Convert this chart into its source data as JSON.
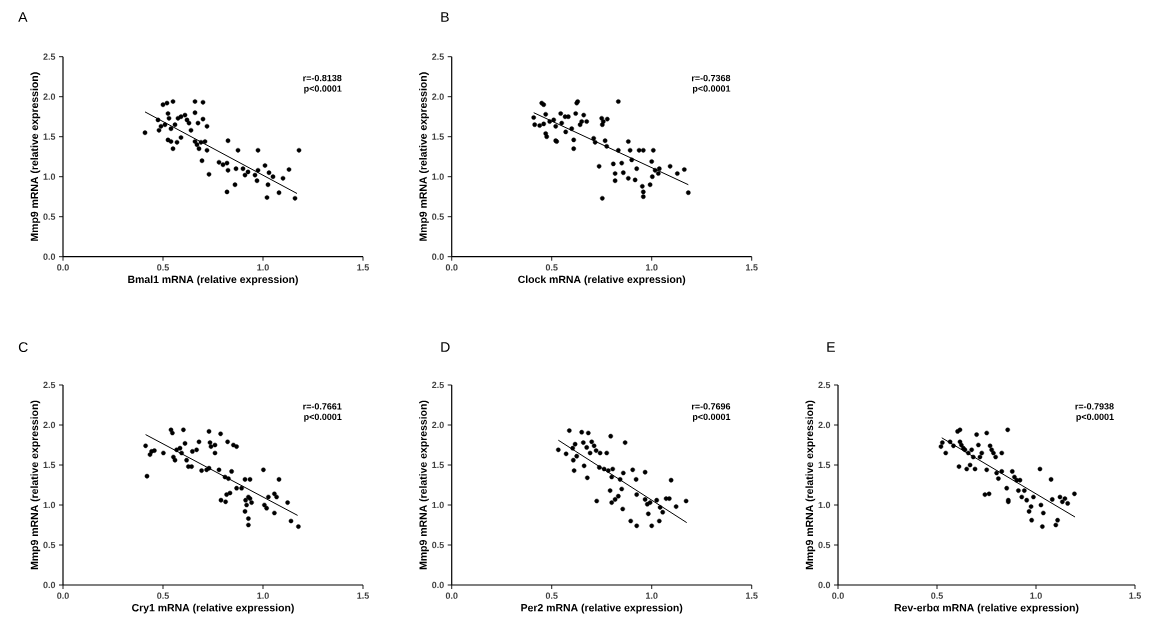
{
  "chart_data": [
    {
      "type": "scatter",
      "title": "A",
      "xlabel": "Bmal1 mRNA (relative expression)",
      "ylabel": "Mmp9 mRNA (relative expression)",
      "xlim": [
        0,
        1.5
      ],
      "ylim": [
        0,
        2.5
      ],
      "xticks": [
        {
          "value": 0,
          "label": "0.0"
        },
        {
          "value": 0.5,
          "label": "0.5"
        },
        {
          "value": 1,
          "label": "1.0"
        },
        {
          "value": 1.5,
          "label": "1.5"
        }
      ],
      "yticks": [
        {
          "value": 0,
          "label": "0.0"
        },
        {
          "value": 0.5,
          "label": "0.5"
        },
        {
          "value": 1,
          "label": "1.0"
        },
        {
          "value": 1.5,
          "label": "1.5"
        },
        {
          "value": 2,
          "label": "2.0"
        },
        {
          "value": 2.5,
          "label": "2.5"
        }
      ],
      "marker": "circle",
      "annotations": [
        "r=-0.8138",
        "p<0.0001"
      ],
      "series": [
        {
          "type": "scatter",
          "color": "#000000",
          "x": [
            0.41,
            0.5,
            0.52,
            0.55,
            0.66,
            0.7,
            0.66,
            0.7,
            0.72,
            0.475,
            0.49,
            0.48,
            0.51,
            0.525,
            0.53,
            0.54,
            0.56,
            0.575,
            0.59,
            0.61,
            0.62,
            0.63,
            0.64,
            0.675,
            0.525,
            0.54,
            0.55,
            0.57,
            0.59,
            0.66,
            0.67,
            0.68,
            0.69,
            0.71,
            0.72,
            0.695,
            0.73,
            0.825,
            0.875,
            0.975,
            1.18,
            0.78,
            0.8,
            0.82,
            0.825,
            0.865,
            0.9,
            0.91,
            0.925,
            0.96,
            0.975,
            1.01,
            1.03,
            1.025,
            0.97,
            1.05,
            1.1,
            1.13,
            0.86,
            0.82,
            1.02,
            1.08,
            1.16
          ],
          "values": [
            1.55,
            1.9,
            1.92,
            1.94,
            1.94,
            1.93,
            1.8,
            1.72,
            1.63,
            1.71,
            1.63,
            1.58,
            1.65,
            1.79,
            1.73,
            1.6,
            1.65,
            1.73,
            1.75,
            1.77,
            1.71,
            1.67,
            1.58,
            1.67,
            1.46,
            1.44,
            1.35,
            1.43,
            1.49,
            1.44,
            1.4,
            1.35,
            1.43,
            1.44,
            1.33,
            1.2,
            1.03,
            1.45,
            1.33,
            1.33,
            1.33,
            1.18,
            1.15,
            1.17,
            1.08,
            1.1,
            1.1,
            1.02,
            1.06,
            1.02,
            1.08,
            1.14,
            1.05,
            0.9,
            0.95,
            1.0,
            0.98,
            1.09,
            0.9,
            0.81,
            0.74,
            0.8,
            0.73
          ]
        },
        {
          "type": "line",
          "marker": "none",
          "color": "#000000",
          "x": [
            0.41,
            1.17
          ],
          "values": [
            1.81,
            0.79
          ]
        }
      ]
    },
    {
      "type": "scatter",
      "title": "B",
      "xlabel": "Clock mRNA (relative expression)",
      "ylabel": "Mmp9 mRNA (relative expression)",
      "xlim": [
        0,
        1.5
      ],
      "ylim": [
        0,
        2.5
      ],
      "xticks": [
        {
          "value": 0,
          "label": "0.0"
        },
        {
          "value": 0.5,
          "label": "0.5"
        },
        {
          "value": 1,
          "label": "1.0"
        },
        {
          "value": 1.5,
          "label": "1.5"
        }
      ],
      "yticks": [
        {
          "value": 0,
          "label": "0.0"
        },
        {
          "value": 0.5,
          "label": "0.5"
        },
        {
          "value": 1,
          "label": "1.0"
        },
        {
          "value": 1.5,
          "label": "1.5"
        },
        {
          "value": 2,
          "label": "2.0"
        },
        {
          "value": 2.5,
          "label": "2.5"
        }
      ],
      "marker": "circle",
      "annotations": [
        "r=-0.7368",
        "p<0.0001"
      ],
      "series": [
        {
          "type": "scatter",
          "color": "#000000",
          "x": [
            0.41,
            0.415,
            0.44,
            0.45,
            0.46,
            0.47,
            0.46,
            0.47,
            0.475,
            0.49,
            0.51,
            0.52,
            0.52,
            0.525,
            0.545,
            0.55,
            0.567,
            0.57,
            0.583,
            0.6,
            0.61,
            0.61,
            0.62,
            0.625,
            0.63,
            0.642,
            0.65,
            0.66,
            0.675,
            0.71,
            0.717,
            0.75,
            0.753,
            0.758,
            0.778,
            0.767,
            0.775,
            0.737,
            0.753,
            0.808,
            0.817,
            0.817,
            0.833,
            0.833,
            0.85,
            0.858,
            0.883,
            0.892,
            0.883,
            0.9,
            0.917,
            0.925,
            0.937,
            0.958,
            0.953,
            0.958,
            0.958,
            0.992,
            1.0,
            1.003,
            1.008,
            1.017,
            1.033,
            1.038,
            1.092,
            1.128,
            1.163,
            1.183
          ],
          "values": [
            1.74,
            1.65,
            1.64,
            1.92,
            1.9,
            1.78,
            1.66,
            1.54,
            1.5,
            1.69,
            1.71,
            1.63,
            1.45,
            1.44,
            1.79,
            1.67,
            1.75,
            1.56,
            1.75,
            1.6,
            1.35,
            1.46,
            1.79,
            1.92,
            1.94,
            1.65,
            1.69,
            1.77,
            1.69,
            1.48,
            1.43,
            1.73,
            1.65,
            1.69,
            1.72,
            1.45,
            1.38,
            1.13,
            0.73,
            1.16,
            1.04,
            0.95,
            1.94,
            1.33,
            1.17,
            1.05,
            1.44,
            1.33,
            0.98,
            1.21,
            0.96,
            1.1,
            1.33,
            1.33,
            0.88,
            0.81,
            0.75,
            0.9,
            1.19,
            1.0,
            1.33,
            1.08,
            1.04,
            1.1,
            1.13,
            1.04,
            1.09,
            0.8
          ]
        },
        {
          "type": "line",
          "marker": "none",
          "color": "#000000",
          "x": [
            0.41,
            1.183
          ],
          "values": [
            1.8,
            0.9
          ]
        }
      ]
    },
    {
      "type": "scatter",
      "title": "C",
      "xlabel": "Cry1 mRNA (relative expression)",
      "ylabel": "Mmp9 mRNA (relative expression)",
      "xlim": [
        0,
        1.5
      ],
      "ylim": [
        0,
        2.5
      ],
      "xticks": [
        {
          "value": 0,
          "label": "0.0"
        },
        {
          "value": 0.5,
          "label": "0.5"
        },
        {
          "value": 1,
          "label": "1.0"
        },
        {
          "value": 1.5,
          "label": "1.5"
        }
      ],
      "yticks": [
        {
          "value": 0,
          "label": "0.0"
        },
        {
          "value": 0.5,
          "label": "0.5"
        },
        {
          "value": 1,
          "label": "1.0"
        },
        {
          "value": 1.5,
          "label": "1.5"
        },
        {
          "value": 2,
          "label": "2.0"
        },
        {
          "value": 2.5,
          "label": "2.5"
        }
      ],
      "marker": "circle",
      "annotations": [
        "r=-0.7661",
        "p<0.0001"
      ],
      "series": [
        {
          "type": "scatter",
          "color": "#000000",
          "x": [
            0.413,
            0.42,
            0.435,
            0.443,
            0.457,
            0.502,
            0.54,
            0.547,
            0.602,
            0.552,
            0.56,
            0.568,
            0.585,
            0.593,
            0.61,
            0.618,
            0.627,
            0.643,
            0.647,
            0.668,
            0.68,
            0.693,
            0.718,
            0.73,
            0.73,
            0.735,
            0.74,
            0.76,
            0.76,
            0.788,
            0.78,
            0.823,
            0.852,
            0.868,
            0.81,
            0.827,
            0.843,
            0.79,
            0.813,
            0.818,
            0.835,
            0.868,
            0.893,
            0.91,
            0.935,
            0.913,
            0.918,
            0.91,
            0.927,
            0.935,
            0.943,
            0.927,
            0.927,
            1.002,
            1.007,
            1.018,
            1.027,
            1.057,
            1.057,
            1.068,
            1.08,
            1.123,
            1.14,
            1.177
          ],
          "values": [
            1.74,
            1.36,
            1.63,
            1.67,
            1.68,
            1.65,
            1.94,
            1.9,
            1.94,
            1.6,
            1.56,
            1.69,
            1.71,
            1.65,
            1.77,
            1.56,
            1.48,
            1.48,
            1.67,
            1.69,
            1.79,
            1.43,
            1.44,
            1.46,
            1.92,
            1.78,
            1.73,
            1.75,
            1.65,
            1.89,
            1.44,
            1.79,
            1.75,
            1.73,
            1.35,
            1.33,
            1.42,
            1.06,
            1.04,
            1.13,
            1.15,
            1.21,
            1.21,
            1.32,
            1.32,
            1.06,
            1.0,
            0.92,
            1.1,
            1.08,
            1.03,
            0.83,
            0.75,
            1.44,
            1.0,
            0.96,
            1.1,
            0.9,
            1.14,
            1.1,
            1.32,
            1.03,
            0.8,
            0.73
          ]
        },
        {
          "type": "line",
          "marker": "none",
          "color": "#000000",
          "x": [
            0.413,
            1.173
          ],
          "values": [
            1.88,
            0.87
          ]
        }
      ]
    },
    {
      "type": "scatter",
      "title": "D",
      "xlabel": "Per2 mRNA (relative expression)",
      "ylabel": "Mmp9 mRNA (relative expression)",
      "xlim": [
        0,
        1.5
      ],
      "ylim": [
        0,
        2.5
      ],
      "xticks": [
        {
          "value": 0,
          "label": "0.0"
        },
        {
          "value": 0.5,
          "label": "0.5"
        },
        {
          "value": 1,
          "label": "1.0"
        },
        {
          "value": 1.5,
          "label": "1.5"
        }
      ],
      "yticks": [
        {
          "value": 0,
          "label": "0.0"
        },
        {
          "value": 0.5,
          "label": "0.5"
        },
        {
          "value": 1,
          "label": "1.0"
        },
        {
          "value": 1.5,
          "label": "1.5"
        },
        {
          "value": 2,
          "label": "2.0"
        },
        {
          "value": 2.5,
          "label": "2.5"
        }
      ],
      "marker": "circle",
      "annotations": [
        "r=-0.7696",
        "p<0.0001"
      ],
      "series": [
        {
          "type": "scatter",
          "color": "#000000",
          "x": [
            0.533,
            0.572,
            0.588,
            0.605,
            0.608,
            0.612,
            0.617,
            0.625,
            0.65,
            0.658,
            0.662,
            0.683,
            0.675,
            0.678,
            0.692,
            0.7,
            0.712,
            0.722,
            0.738,
            0.742,
            0.762,
            0.775,
            0.783,
            0.795,
            0.8,
            0.805,
            0.842,
            0.858,
            0.867,
            0.905,
            0.922,
            0.967,
            0.792,
            0.8,
            0.817,
            0.833,
            0.85,
            0.725,
            0.855,
            0.895,
            0.925,
            0.925,
            0.967,
            0.978,
            0.983,
            0.992,
            1.0,
            1.025,
            1.042,
            1.055,
            1.038,
            1.072,
            1.088,
            1.097,
            1.122,
            1.172
          ],
          "values": [
            1.69,
            1.64,
            1.93,
            1.71,
            1.56,
            1.43,
            1.76,
            1.61,
            1.91,
            1.78,
            1.49,
            1.9,
            1.72,
            1.34,
            1.65,
            1.79,
            1.74,
            1.68,
            1.47,
            1.65,
            1.45,
            1.65,
            1.43,
            1.86,
            1.35,
            1.45,
            1.32,
            1.4,
            1.78,
            1.44,
            1.32,
            1.41,
            1.18,
            1.03,
            1.07,
            1.11,
            1.2,
            1.05,
            0.95,
            0.8,
            0.74,
            1.13,
            1.07,
            1.01,
            0.89,
            1.03,
            0.74,
            1.06,
            0.97,
            0.91,
            0.8,
            1.08,
            1.08,
            1.31,
            0.98,
            1.05
          ]
        },
        {
          "type": "line",
          "marker": "none",
          "color": "#000000",
          "x": [
            0.533,
            1.175
          ],
          "values": [
            1.81,
            0.78
          ]
        }
      ]
    },
    {
      "type": "scatter",
      "title": "E",
      "xlabel": "Rev-erbα  mRNA (relative expression)",
      "ylabel": "Mmp9 mRNA (relative expression)",
      "xlim": [
        0,
        1.5
      ],
      "ylim": [
        0,
        2.5
      ],
      "xticks": [
        {
          "value": 0,
          "label": "0.0"
        },
        {
          "value": 0.5,
          "label": "0.5"
        },
        {
          "value": 1,
          "label": "1.0"
        },
        {
          "value": 1.5,
          "label": "1.5"
        }
      ],
      "yticks": [
        {
          "value": 0,
          "label": "0.0"
        },
        {
          "value": 0.5,
          "label": "0.5"
        },
        {
          "value": 1,
          "label": "1.0"
        },
        {
          "value": 1.5,
          "label": "1.5"
        },
        {
          "value": 2,
          "label": "2.0"
        },
        {
          "value": 2.5,
          "label": "2.5"
        }
      ],
      "marker": "circle",
      "annotations": [
        "r=-0.7938",
        "p<0.0001"
      ],
      "series": [
        {
          "type": "scatter",
          "color": "#000000",
          "x": [
            0.52,
            0.527,
            0.544,
            0.566,
            0.583,
            0.604,
            0.616,
            0.611,
            0.616,
            0.623,
            0.633,
            0.641,
            0.65,
            0.658,
            0.667,
            0.675,
            0.683,
            0.692,
            0.7,
            0.709,
            0.717,
            0.726,
            0.751,
            0.751,
            0.742,
            0.763,
            0.768,
            0.776,
            0.785,
            0.796,
            0.801,
            0.81,
            0.827,
            0.827,
            0.852,
            0.857,
            0.86,
            0.86,
            0.88,
            0.891,
            0.902,
            0.919,
            0.911,
            0.928,
            0.941,
            0.953,
            0.965,
            0.975,
            0.987,
            0.978,
            1.02,
            1.025,
            1.032,
            1.037,
            1.076,
            1.082,
            1.1,
            1.109,
            1.121,
            1.133,
            1.146,
            1.16,
            1.194
          ],
          "values": [
            1.73,
            1.78,
            1.65,
            1.79,
            1.74,
            1.92,
            1.94,
            1.48,
            1.79,
            1.75,
            1.71,
            1.69,
            1.45,
            1.65,
            1.5,
            1.69,
            1.6,
            1.45,
            1.88,
            1.75,
            1.6,
            1.65,
            1.9,
            1.44,
            1.13,
            1.14,
            1.74,
            1.69,
            1.65,
            1.6,
            1.4,
            1.33,
            1.65,
            1.42,
            1.21,
            1.94,
            1.06,
            1.04,
            1.42,
            1.35,
            1.31,
            1.31,
            1.18,
            1.1,
            1.18,
            1.06,
            0.92,
            0.98,
            1.1,
            0.81,
            1.45,
            1.0,
            0.73,
            0.9,
            1.32,
            1.07,
            0.75,
            0.81,
            1.1,
            1.04,
            1.08,
            1.02,
            1.14
          ]
        },
        {
          "type": "line",
          "marker": "none",
          "color": "#000000",
          "x": [
            0.524,
            1.197
          ],
          "values": [
            1.84,
            0.85
          ]
        }
      ]
    }
  ]
}
